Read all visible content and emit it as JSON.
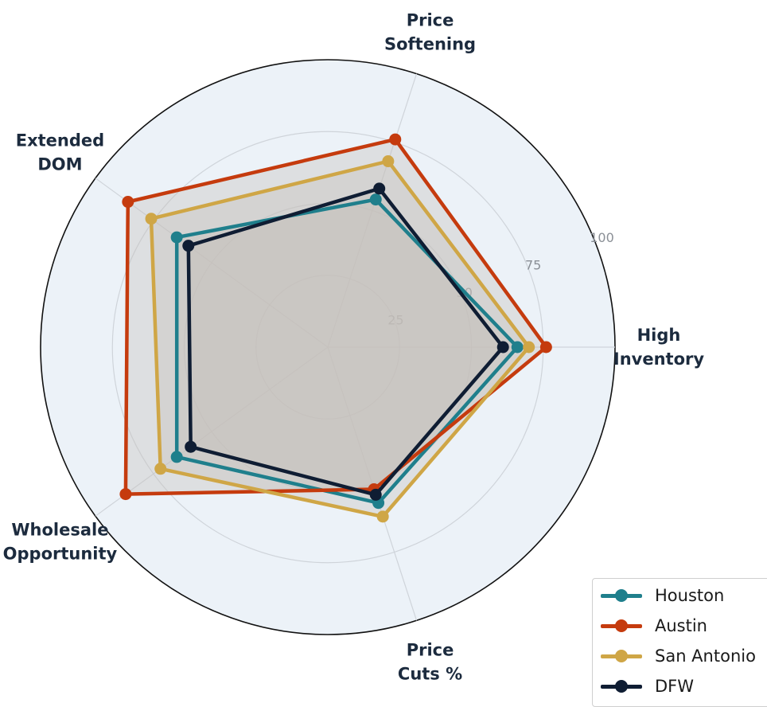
{
  "chart_data": {
    "type": "radar",
    "axes": [
      "High Inventory",
      "Price Softening",
      "Extended DOM",
      "Wholesale Opportunity",
      "Price Cuts %"
    ],
    "axis_label_lines": [
      [
        "High",
        "Inventory"
      ],
      [
        "Price",
        "Softening"
      ],
      [
        "Extended",
        "DOM"
      ],
      [
        "Wholesale",
        "Opportunity"
      ],
      [
        "Price",
        "Cuts %"
      ]
    ],
    "rlim": [
      0,
      100
    ],
    "rticks": [
      25,
      50,
      75,
      100
    ],
    "grid": true,
    "legend_position": "bottom-right",
    "series": [
      {
        "name": "Houston",
        "color": "#1f7f8c",
        "values": [
          66,
          54,
          65,
          65,
          57
        ]
      },
      {
        "name": "Austin",
        "color": "#c53b0e",
        "values": [
          76,
          76,
          86,
          87,
          52
        ]
      },
      {
        "name": "San Antonio",
        "color": "#cfa646",
        "values": [
          70,
          68,
          76,
          72,
          62
        ]
      },
      {
        "name": "DFW",
        "color": "#0f1d33",
        "values": [
          61,
          58,
          60,
          59,
          54
        ]
      }
    ],
    "panel_color": "#ecf2f8",
    "fill_color": "#c6c0bb"
  }
}
